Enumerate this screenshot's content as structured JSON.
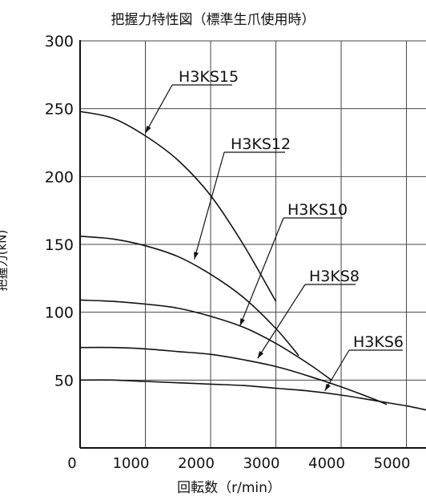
{
  "chart_data": {
    "type": "line",
    "title": "把握力特性図（標準生爪使用時）",
    "xlabel": "回転数（r/min）",
    "ylabel": "把握力(kN)",
    "xlim": [
      0,
      5300
    ],
    "ylim": [
      0,
      300
    ],
    "x_ticks": [
      0,
      1000,
      2000,
      3000,
      4000,
      5000
    ],
    "x_tick_labels": [
      "0",
      "1000",
      "2000",
      "3000",
      "4000",
      "5000"
    ],
    "y_ticks": [
      50,
      100,
      150,
      200,
      250,
      300
    ],
    "y_tick_labels": [
      "50",
      "100",
      "150",
      "200",
      "250",
      "300"
    ],
    "grid": true,
    "series": [
      {
        "name": "H3KS15",
        "x": [
          0,
          500,
          1000,
          1500,
          2000,
          2500,
          3000
        ],
        "y": [
          248,
          243,
          230,
          212,
          186,
          150,
          108
        ]
      },
      {
        "name": "H3KS12",
        "x": [
          0,
          500,
          1000,
          1500,
          2000,
          2500,
          3000,
          3350
        ],
        "y": [
          156,
          154,
          149,
          141,
          128,
          111,
          88,
          68
        ]
      },
      {
        "name": "H3KS10",
        "x": [
          0,
          500,
          1000,
          1500,
          2000,
          2500,
          3000,
          3500,
          3850
        ],
        "y": [
          109,
          108,
          106,
          103,
          97,
          89,
          77,
          62,
          50
        ]
      },
      {
        "name": "H3KS8",
        "x": [
          0,
          500,
          1000,
          1500,
          2000,
          2500,
          3000,
          3500,
          4000,
          4500,
          4700
        ],
        "y": [
          74,
          74,
          73,
          71,
          69,
          65,
          60,
          53,
          45,
          36,
          32
        ]
      },
      {
        "name": "H3KS6",
        "x": [
          0,
          500,
          1000,
          1500,
          2000,
          2500,
          3000,
          3500,
          4000,
          4500,
          5000,
          5300
        ],
        "y": [
          50,
          50,
          49,
          48,
          47,
          46,
          44,
          42,
          39,
          35,
          31,
          28
        ]
      }
    ],
    "annotations": [
      {
        "label": "H3KS15",
        "series": "H3KS15",
        "x": 1000,
        "y": 232
      },
      {
        "label": "H3KS12",
        "series": "H3KS12",
        "x": 1750,
        "y": 139
      },
      {
        "label": "H3KS10",
        "series": "H3KS10",
        "x": 2450,
        "y": 90
      },
      {
        "label": "H3KS8",
        "series": "H3KS8",
        "x": 2720,
        "y": 66
      },
      {
        "label": "H3KS6",
        "series": "H3KS6",
        "x": 3750,
        "y": 42
      }
    ]
  }
}
